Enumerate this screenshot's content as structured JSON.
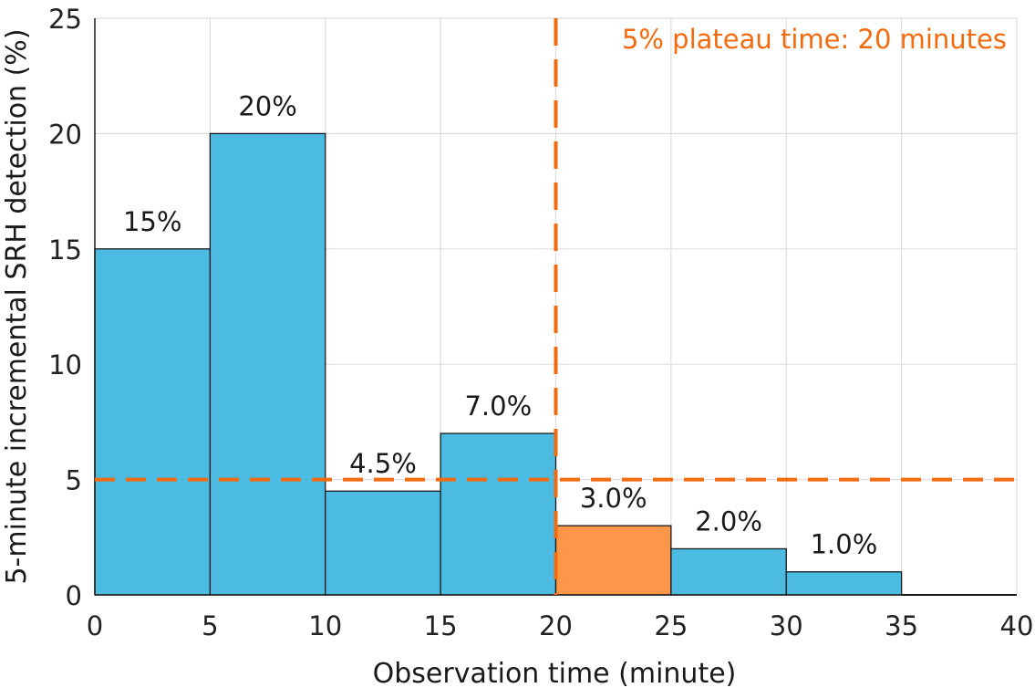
{
  "chart_data": {
    "type": "bar",
    "xlabel": "Observation time (minute)",
    "ylabel": "5-minute incremental SRH detection (%)",
    "xlim": [
      0,
      40
    ],
    "ylim": [
      0,
      25
    ],
    "x_ticks": [
      "0",
      "5",
      "10",
      "15",
      "20",
      "25",
      "30",
      "35",
      "40"
    ],
    "y_ticks": [
      "0",
      "5",
      "10",
      "15",
      "20",
      "25"
    ],
    "grid": true,
    "bins": [
      {
        "start": 0,
        "end": 5,
        "value": 15,
        "label": "15%",
        "highlight": false
      },
      {
        "start": 5,
        "end": 10,
        "value": 20,
        "label": "20%",
        "highlight": false
      },
      {
        "start": 10,
        "end": 15,
        "value": 4.5,
        "label": "4.5%",
        "highlight": false
      },
      {
        "start": 15,
        "end": 20,
        "value": 7.0,
        "label": "7.0%",
        "highlight": false
      },
      {
        "start": 20,
        "end": 25,
        "value": 3.0,
        "label": "3.0%",
        "highlight": true
      },
      {
        "start": 25,
        "end": 30,
        "value": 2.0,
        "label": "2.0%",
        "highlight": false
      },
      {
        "start": 30,
        "end": 35,
        "value": 1.0,
        "label": "1.0%",
        "highlight": false
      },
      {
        "start": 35,
        "end": 40,
        "value": 0,
        "label": "",
        "highlight": false
      }
    ],
    "reference_lines": {
      "horizontal_y": 5,
      "vertical_x": 20
    },
    "annotation": "5% plateau time: 20 minutes",
    "colors": {
      "bar": "#4bbbe1",
      "highlight_bar": "#fe9649",
      "reference_line": "#f26b0f",
      "annotation": "#f26b0f",
      "grid": "#dddddd",
      "axis": "#1a1a1a"
    }
  }
}
